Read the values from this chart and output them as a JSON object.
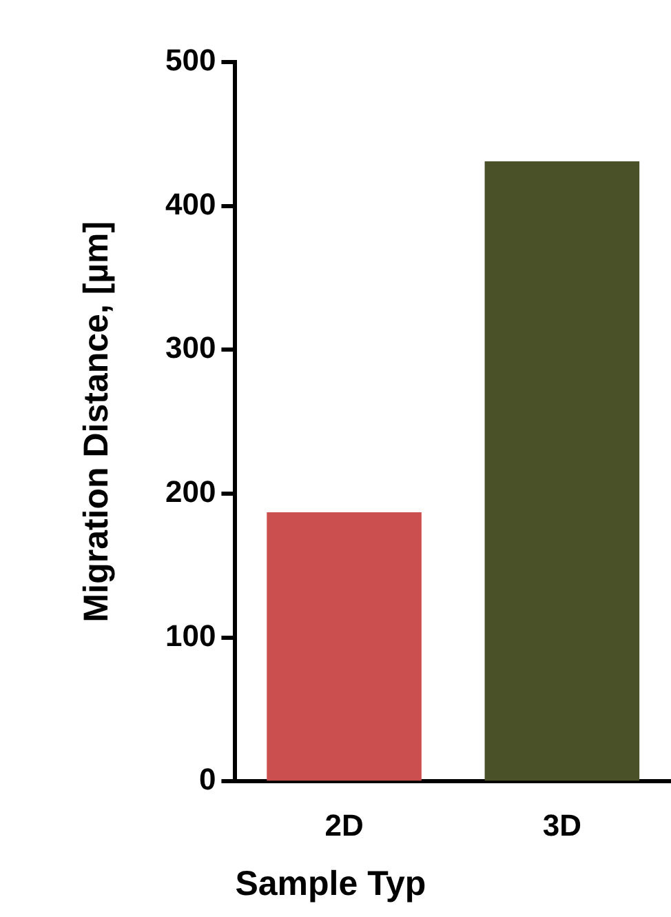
{
  "chart_data": {
    "type": "bar",
    "xlabel": "Sample Typ",
    "ylabel": "Migration Distance, [µm]",
    "categories": [
      "2D",
      "3D"
    ],
    "values": [
      187,
      431
    ],
    "colors": [
      "#cc4f4f",
      "#4a5128"
    ],
    "ylim": [
      0,
      500
    ],
    "yticks": [
      0,
      100,
      200,
      300,
      400,
      500
    ],
    "grid": false,
    "legend": false
  }
}
